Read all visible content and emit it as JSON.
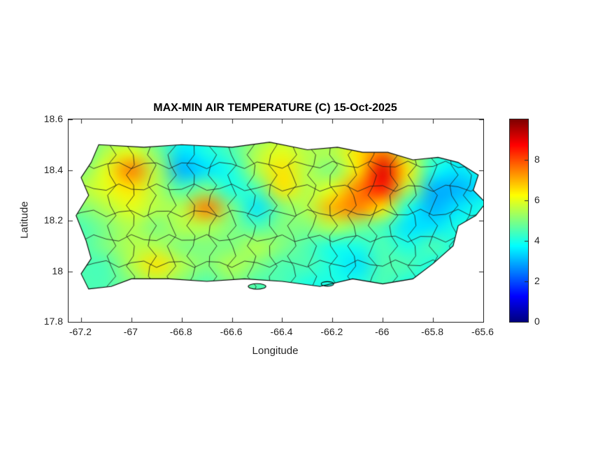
{
  "chart_data": {
    "type": "heatmap",
    "title": "MAX-MIN AIR TEMPERATURE (C) 15-Oct-2025",
    "xlabel": "Longitude",
    "ylabel": "Latitude",
    "xlim": [
      -67.25,
      -65.6
    ],
    "ylim": [
      17.8,
      18.6
    ],
    "x_ticks": [
      -67.2,
      -67.0,
      -66.8,
      -66.6,
      -66.4,
      -66.2,
      -66.0,
      -65.8,
      -65.6
    ],
    "x_tick_labels": [
      "-67.2",
      "-67",
      "-66.8",
      "-66.6",
      "-66.4",
      "-66.2",
      "-66",
      "-65.8",
      "-65.6"
    ],
    "y_ticks": [
      17.8,
      18.0,
      18.2,
      18.4,
      18.6
    ],
    "y_tick_labels": [
      "17.8",
      "18",
      "18.2",
      "18.4",
      "18.6"
    ],
    "colormap": "jet",
    "clim": [
      0,
      10
    ],
    "colorbar_ticks": [
      0,
      2,
      4,
      6,
      8
    ],
    "colorbar_tick_labels": [
      "0",
      "2",
      "4",
      "6",
      "8"
    ],
    "grid": {
      "lon": [
        -67.2,
        -67.1,
        -67.0,
        -66.9,
        -66.8,
        -66.7,
        -66.6,
        -66.5,
        -66.4,
        -66.3,
        -66.2,
        -66.1,
        -66.0,
        -65.9,
        -65.8,
        -65.7,
        -65.6
      ],
      "lat": [
        18.55,
        18.475,
        18.4,
        18.325,
        18.25,
        18.175,
        18.1,
        18.025,
        17.95
      ],
      "values": [
        [
          5.0,
          5.0,
          4.5,
          4.5,
          4.0,
          4.0,
          4.5,
          5.0,
          5.5,
          5.0,
          5.0,
          5.5,
          6.0,
          5.0,
          4.5,
          4.0,
          4.0
        ],
        [
          4.5,
          5.5,
          6.0,
          5.0,
          3.5,
          4.0,
          4.5,
          5.5,
          6.0,
          5.5,
          5.5,
          6.5,
          7.5,
          5.5,
          4.5,
          4.0,
          4.0
        ],
        [
          5.0,
          6.0,
          7.5,
          5.5,
          3.0,
          3.5,
          4.0,
          5.5,
          6.5,
          5.5,
          5.0,
          6.5,
          9.0,
          6.5,
          4.0,
          3.5,
          4.0
        ],
        [
          5.5,
          6.0,
          6.5,
          5.5,
          4.5,
          5.0,
          4.0,
          4.5,
          6.5,
          5.5,
          6.0,
          7.5,
          8.5,
          5.5,
          3.0,
          3.0,
          3.5
        ],
        [
          5.0,
          5.5,
          6.0,
          5.5,
          5.5,
          7.5,
          5.0,
          3.5,
          5.0,
          5.5,
          7.0,
          7.5,
          6.5,
          4.0,
          3.0,
          3.5,
          4.0
        ],
        [
          4.5,
          5.0,
          5.5,
          5.0,
          5.5,
          5.5,
          5.0,
          4.5,
          5.0,
          5.0,
          5.5,
          5.0,
          4.5,
          3.5,
          3.5,
          4.0,
          4.0
        ],
        [
          4.5,
          5.0,
          5.5,
          5.5,
          5.0,
          5.0,
          5.0,
          5.5,
          5.0,
          4.5,
          4.0,
          4.0,
          4.5,
          4.0,
          4.5,
          4.0,
          4.0
        ],
        [
          4.5,
          4.5,
          5.5,
          6.5,
          5.5,
          5.0,
          5.5,
          5.0,
          4.5,
          4.5,
          4.0,
          3.5,
          4.5,
          4.5,
          4.0,
          4.0,
          4.0
        ],
        [
          4.5,
          4.5,
          5.0,
          5.5,
          5.0,
          4.5,
          5.0,
          4.5,
          4.5,
          4.0,
          4.0,
          4.0,
          4.5,
          4.0,
          4.0,
          4.0,
          4.0
        ]
      ]
    },
    "coastline": [
      [
        -67.13,
        18.5
      ],
      [
        -66.95,
        18.49
      ],
      [
        -66.8,
        18.5
      ],
      [
        -66.6,
        18.49
      ],
      [
        -66.45,
        18.51
      ],
      [
        -66.3,
        18.48
      ],
      [
        -66.18,
        18.49
      ],
      [
        -66.08,
        18.47
      ],
      [
        -65.98,
        18.47
      ],
      [
        -65.88,
        18.44
      ],
      [
        -65.78,
        18.45
      ],
      [
        -65.7,
        18.43
      ],
      [
        -65.62,
        18.38
      ],
      [
        -65.64,
        18.32
      ],
      [
        -65.59,
        18.27
      ],
      [
        -65.63,
        18.22
      ],
      [
        -65.7,
        18.18
      ],
      [
        -65.72,
        18.1
      ],
      [
        -65.8,
        18.03
      ],
      [
        -65.88,
        17.97
      ],
      [
        -66.0,
        17.95
      ],
      [
        -66.12,
        17.97
      ],
      [
        -66.25,
        17.94
      ],
      [
        -66.4,
        17.96
      ],
      [
        -66.55,
        17.97
      ],
      [
        -66.7,
        17.96
      ],
      [
        -66.85,
        17.97
      ],
      [
        -67.0,
        17.97
      ],
      [
        -67.08,
        17.94
      ],
      [
        -67.17,
        17.93
      ],
      [
        -67.2,
        17.99
      ],
      [
        -67.16,
        18.05
      ],
      [
        -67.18,
        18.12
      ],
      [
        -67.22,
        18.22
      ],
      [
        -67.17,
        18.3
      ],
      [
        -67.2,
        18.37
      ],
      [
        -67.16,
        18.43
      ]
    ],
    "islets": [
      [
        -66.5,
        17.94,
        0.07,
        0.022
      ],
      [
        -66.22,
        17.95,
        0.05,
        0.018
      ]
    ],
    "boundary_lons": [
      -67.08,
      -67.0,
      -66.92,
      -66.84,
      -66.76,
      -66.68,
      -66.6,
      -66.52,
      -66.44,
      -66.36,
      -66.28,
      -66.2,
      -66.12,
      -66.04,
      -65.96,
      -65.88,
      -65.8,
      -65.72,
      -65.66
    ],
    "boundary_lats": [
      18.42,
      18.33,
      18.23,
      18.13,
      18.03
    ]
  }
}
